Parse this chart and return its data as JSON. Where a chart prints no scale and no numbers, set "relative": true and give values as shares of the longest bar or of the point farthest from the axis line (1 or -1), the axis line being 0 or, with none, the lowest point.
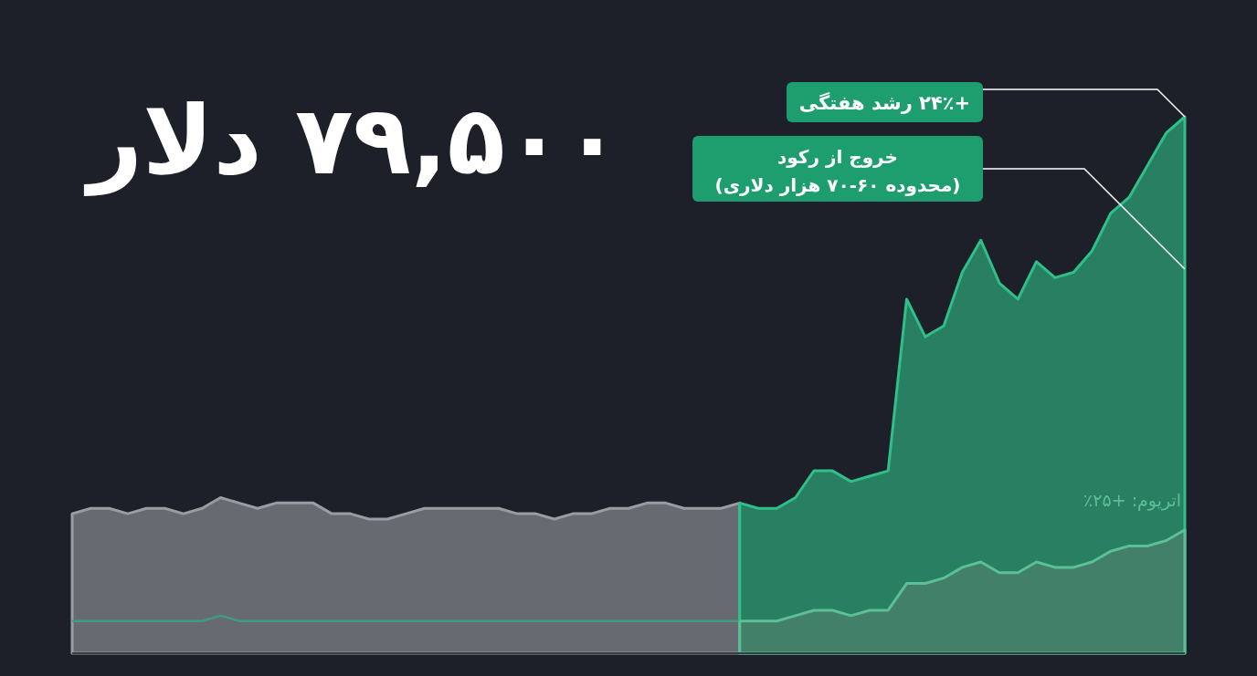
{
  "chart_data": {
    "type": "area",
    "relative": true,
    "title": "۷۹,۵۰۰ دلار",
    "categories": [
      null,
      null,
      null,
      null,
      null,
      null,
      null,
      null,
      null,
      null,
      null,
      null,
      null,
      null,
      null,
      null,
      null,
      null,
      null,
      null,
      null,
      null,
      null,
      null,
      null,
      null,
      null,
      null,
      null,
      null,
      null,
      null,
      null,
      null,
      null,
      null,
      null,
      null,
      null,
      null,
      null,
      null,
      null,
      null,
      null,
      null,
      null,
      null,
      null,
      null,
      null,
      null,
      null,
      null,
      null,
      null,
      null,
      null,
      null,
      null,
      null
    ],
    "series": [
      {
        "color": "#9a9ca2",
        "values": [
          0.26,
          0.27,
          0.27,
          0.26,
          0.27,
          0.27,
          0.26,
          0.27,
          0.29,
          0.28,
          0.27,
          0.28,
          0.28,
          0.28,
          0.26,
          0.26,
          0.25,
          0.25,
          0.26,
          0.27,
          0.27,
          0.27,
          0.27,
          0.27,
          0.26,
          0.26,
          0.25,
          0.26,
          0.26,
          0.27,
          0.27,
          0.28,
          0.28,
          0.27,
          0.27,
          0.27,
          0.28,
          null,
          null,
          null,
          null,
          null,
          null,
          null,
          null,
          null,
          null,
          null,
          null,
          null,
          null,
          null,
          null,
          null,
          null,
          null,
          null,
          null,
          null,
          null,
          null
        ]
      },
      {
        "color": "#2fbf88",
        "values": [
          null,
          null,
          null,
          null,
          null,
          null,
          null,
          null,
          null,
          null,
          null,
          null,
          null,
          null,
          null,
          null,
          null,
          null,
          null,
          null,
          null,
          null,
          null,
          null,
          null,
          null,
          null,
          null,
          null,
          null,
          null,
          null,
          null,
          null,
          null,
          null,
          0.28,
          0.27,
          0.27,
          0.29,
          0.34,
          0.34,
          0.32,
          0.33,
          0.34,
          0.66,
          0.59,
          0.61,
          0.71,
          0.77,
          0.69,
          0.66,
          0.73,
          0.7,
          0.71,
          0.75,
          0.82,
          0.85,
          0.91,
          0.97,
          1
        ]
      },
      {
        "type": "line",
        "color": "#3f9c7e",
        "values": [
          0.06,
          0.06,
          0.06,
          0.06,
          0.06,
          0.06,
          0.06,
          0.06,
          0.07,
          0.06,
          0.06,
          0.06,
          0.06,
          0.06,
          0.06,
          0.06,
          0.06,
          0.06,
          0.06,
          0.06,
          0.06,
          0.06,
          0.06,
          0.06,
          0.06,
          0.06,
          0.06,
          0.06,
          0.06,
          0.06,
          0.06,
          0.06,
          0.06,
          0.06,
          0.06,
          0.06,
          0.06,
          null,
          null,
          null,
          null,
          null,
          null,
          null,
          null,
          null,
          null,
          null,
          null,
          null,
          null,
          null,
          null,
          null,
          null,
          null,
          null,
          null,
          null,
          null,
          null
        ]
      },
      {
        "name": "اتریوم: +۲۵٪",
        "color": "#5cc096",
        "values": [
          null,
          null,
          null,
          null,
          null,
          null,
          null,
          null,
          null,
          null,
          null,
          null,
          null,
          null,
          null,
          null,
          null,
          null,
          null,
          null,
          null,
          null,
          null,
          null,
          null,
          null,
          null,
          null,
          null,
          null,
          null,
          null,
          null,
          null,
          null,
          null,
          0.06,
          0.06,
          0.06,
          0.07,
          0.08,
          0.08,
          0.07,
          0.08,
          0.08,
          0.13,
          0.13,
          0.14,
          0.16,
          0.17,
          0.15,
          0.15,
          0.17,
          0.16,
          0.16,
          0.17,
          0.19,
          0.2,
          0.2,
          0.21,
          0.23
        ]
      }
    ],
    "annotations": [
      "+۲۴٪ رشد هفتگی",
      "خروج از رکود",
      "(محدوده ۶۰-۷۰ هزار دلاری)"
    ]
  }
}
